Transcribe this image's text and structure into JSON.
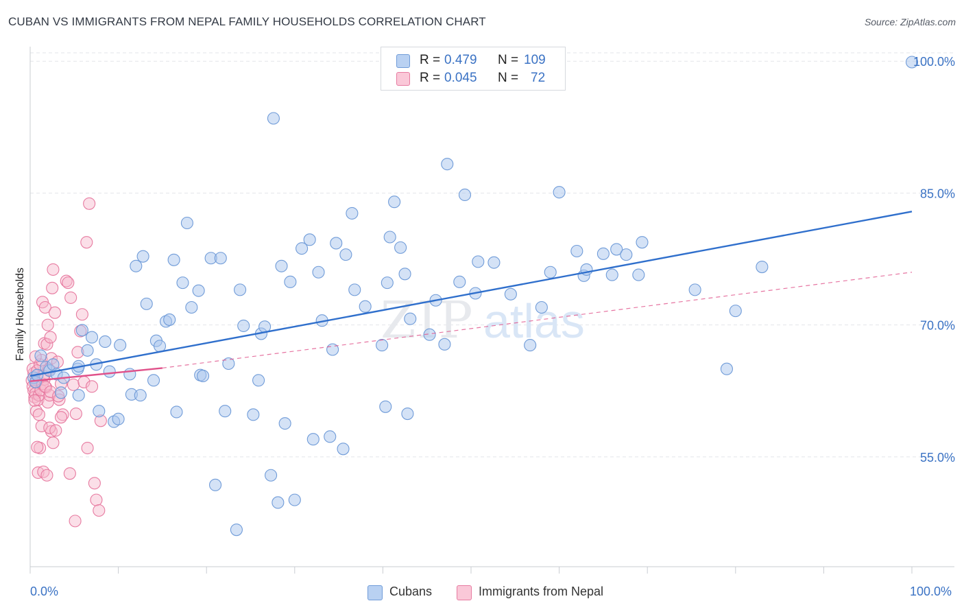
{
  "header": {
    "title": "CUBAN VS IMMIGRANTS FROM NEPAL FAMILY HOUSEHOLDS CORRELATION CHART",
    "source": "Source: ZipAtlas.com"
  },
  "legend_top": {
    "rows": [
      {
        "r_label": "R =",
        "r_value": "0.479",
        "n_label": "N =",
        "n_value": "109"
      },
      {
        "r_label": "R =",
        "r_value": "0.045",
        "n_label": "N =",
        "n_value": "72"
      }
    ]
  },
  "legend_bottom": {
    "items": [
      "Cubans",
      "Immigrants from Nepal"
    ]
  },
  "watermark": {
    "zip": "ZIP",
    "atlas": "atlas"
  },
  "colors": {
    "cubans_fill": "#a9c6ee",
    "cubans_stroke": "#6f9bd8",
    "cubans_line": "#2f6fcc",
    "nepal_fill": "#f7b8cc",
    "nepal_stroke": "#e77aa0",
    "nepal_line": "#e0518a",
    "axis_label": "#3a72c4",
    "grid": "#e3e5e9"
  },
  "chart_data": {
    "type": "scatter",
    "title": "CUBAN VS IMMIGRANTS FROM NEPAL FAMILY HOUSEHOLDS CORRELATION CHART",
    "xlabel": "",
    "ylabel": "Family Households",
    "xlim": [
      0,
      100
    ],
    "ylim": [
      42.5,
      101.5
    ],
    "x_tick_labels": [
      "0.0%",
      "100.0%"
    ],
    "y_ticks": [
      55.0,
      70.0,
      85.0,
      100.0
    ],
    "y_tick_labels": [
      "55.0%",
      "70.0%",
      "85.0%",
      "100.0%"
    ],
    "series": [
      {
        "name": "Cubans",
        "r": 0.479,
        "n": 109,
        "trend": {
          "x0": 0,
          "y0": 64.2,
          "x1": 100,
          "y1": 82.9
        },
        "points": [
          [
            0.4,
            64.0
          ],
          [
            0.6,
            63.5
          ],
          [
            0.8,
            64.3
          ],
          [
            1.2,
            66.5
          ],
          [
            1.8,
            65.2
          ],
          [
            2.2,
            64.8
          ],
          [
            2.6,
            65.5
          ],
          [
            3.0,
            64.4
          ],
          [
            3.5,
            62.3
          ],
          [
            3.8,
            64.0
          ],
          [
            5.4,
            65.0
          ],
          [
            5.5,
            65.3
          ],
          [
            5.5,
            62.0
          ],
          [
            5.9,
            69.4
          ],
          [
            6.5,
            67.1
          ],
          [
            7.0,
            68.6
          ],
          [
            7.5,
            65.5
          ],
          [
            7.8,
            60.2
          ],
          [
            8.5,
            68.1
          ],
          [
            9.0,
            64.7
          ],
          [
            9.5,
            59.0
          ],
          [
            10.0,
            59.3
          ],
          [
            10.2,
            67.7
          ],
          [
            11.3,
            64.4
          ],
          [
            11.5,
            62.1
          ],
          [
            12.0,
            76.7
          ],
          [
            12.5,
            62.0
          ],
          [
            12.8,
            77.8
          ],
          [
            13.2,
            72.4
          ],
          [
            14.0,
            63.7
          ],
          [
            14.3,
            68.2
          ],
          [
            14.7,
            67.6
          ],
          [
            15.4,
            70.4
          ],
          [
            15.8,
            70.6
          ],
          [
            16.3,
            77.4
          ],
          [
            16.6,
            60.1
          ],
          [
            17.3,
            74.8
          ],
          [
            17.8,
            81.6
          ],
          [
            18.3,
            72.0
          ],
          [
            19.1,
            73.9
          ],
          [
            19.3,
            64.3
          ],
          [
            19.6,
            64.2
          ],
          [
            20.5,
            77.6
          ],
          [
            21.0,
            51.8
          ],
          [
            21.6,
            77.6
          ],
          [
            22.1,
            60.2
          ],
          [
            22.5,
            65.6
          ],
          [
            23.4,
            46.7
          ],
          [
            23.8,
            74.0
          ],
          [
            24.2,
            69.9
          ],
          [
            25.3,
            59.8
          ],
          [
            25.9,
            63.7
          ],
          [
            26.2,
            69.0
          ],
          [
            26.6,
            69.8
          ],
          [
            27.3,
            52.9
          ],
          [
            27.6,
            93.5
          ],
          [
            28.1,
            49.8
          ],
          [
            28.5,
            76.7
          ],
          [
            28.9,
            58.8
          ],
          [
            29.5,
            74.9
          ],
          [
            30.0,
            50.1
          ],
          [
            30.8,
            78.7
          ],
          [
            31.7,
            79.7
          ],
          [
            32.1,
            57.0
          ],
          [
            32.7,
            76.0
          ],
          [
            33.1,
            70.5
          ],
          [
            34.0,
            57.3
          ],
          [
            34.3,
            67.2
          ],
          [
            34.7,
            79.3
          ],
          [
            35.5,
            55.9
          ],
          [
            35.8,
            78.0
          ],
          [
            36.5,
            82.7
          ],
          [
            36.8,
            74.0
          ],
          [
            38.0,
            72.1
          ],
          [
            39.9,
            67.7
          ],
          [
            40.3,
            60.7
          ],
          [
            40.5,
            74.8
          ],
          [
            41.3,
            84.0
          ],
          [
            40.8,
            80.0
          ],
          [
            42.0,
            78.8
          ],
          [
            42.5,
            75.8
          ],
          [
            42.8,
            59.9
          ],
          [
            43.1,
            70.7
          ],
          [
            45.3,
            68.9
          ],
          [
            46.0,
            72.8
          ],
          [
            47.0,
            67.8
          ],
          [
            47.3,
            88.3
          ],
          [
            48.7,
            74.9
          ],
          [
            49.3,
            84.8
          ],
          [
            50.5,
            73.6
          ],
          [
            50.8,
            77.2
          ],
          [
            52.6,
            77.1
          ],
          [
            54.5,
            73.5
          ],
          [
            56.7,
            67.7
          ],
          [
            58.0,
            72.0
          ],
          [
            59.0,
            76.0
          ],
          [
            60.0,
            85.1
          ],
          [
            62.0,
            78.4
          ],
          [
            62.8,
            75.6
          ],
          [
            63.1,
            76.3
          ],
          [
            65.0,
            78.1
          ],
          [
            66.0,
            75.7
          ],
          [
            66.5,
            78.6
          ],
          [
            67.6,
            78.0
          ],
          [
            69.0,
            75.7
          ],
          [
            69.4,
            79.4
          ],
          [
            75.4,
            74.0
          ],
          [
            79.0,
            65.0
          ],
          [
            80.0,
            71.6
          ],
          [
            83.0,
            76.6
          ],
          [
            100.0,
            99.9
          ]
        ]
      },
      {
        "name": "Immigrants from Nepal",
        "r": 0.045,
        "n": 72,
        "trend": {
          "x0": 0,
          "y0": 63.6,
          "x1": 15,
          "y1": 65.1
        },
        "trend_extended": {
          "x0": 15,
          "y0": 65.1,
          "x1": 100,
          "y1": 76.0
        },
        "points": [
          [
            0.2,
            63.7
          ],
          [
            0.3,
            63.0
          ],
          [
            0.4,
            62.5
          ],
          [
            0.5,
            61.8
          ],
          [
            0.6,
            62.2
          ],
          [
            0.7,
            63.5
          ],
          [
            0.4,
            64.5
          ],
          [
            0.3,
            65.0
          ],
          [
            0.9,
            61.5
          ],
          [
            1.0,
            62.0
          ],
          [
            1.2,
            62.6
          ],
          [
            1.4,
            63.3
          ],
          [
            1.6,
            63.8
          ],
          [
            1.8,
            62.9
          ],
          [
            2.0,
            61.2
          ],
          [
            2.2,
            62.0
          ],
          [
            0.8,
            64.8
          ],
          [
            1.1,
            65.5
          ],
          [
            1.3,
            66.0
          ],
          [
            1.5,
            64.2
          ],
          [
            1.7,
            63.0
          ],
          [
            0.6,
            66.4
          ],
          [
            2.4,
            66.2
          ],
          [
            0.5,
            61.4
          ],
          [
            0.7,
            60.2
          ],
          [
            1.0,
            59.8
          ],
          [
            1.3,
            58.5
          ],
          [
            1.6,
            67.9
          ],
          [
            1.9,
            67.8
          ],
          [
            2.1,
            64.9
          ],
          [
            2.3,
            62.4
          ],
          [
            0.9,
            53.2
          ],
          [
            1.1,
            56.0
          ],
          [
            1.4,
            72.6
          ],
          [
            1.7,
            72.0
          ],
          [
            2.0,
            70.0
          ],
          [
            2.3,
            68.6
          ],
          [
            2.5,
            74.2
          ],
          [
            2.6,
            76.3
          ],
          [
            2.8,
            71.4
          ],
          [
            3.1,
            65.8
          ],
          [
            3.3,
            61.5
          ],
          [
            3.5,
            63.3
          ],
          [
            3.7,
            59.8
          ],
          [
            4.1,
            75.0
          ],
          [
            4.3,
            74.8
          ],
          [
            4.6,
            73.1
          ],
          [
            4.9,
            63.2
          ],
          [
            5.2,
            59.9
          ],
          [
            5.4,
            66.9
          ],
          [
            5.7,
            69.3
          ],
          [
            5.9,
            71.2
          ],
          [
            6.1,
            63.5
          ],
          [
            6.5,
            56.0
          ],
          [
            6.4,
            79.4
          ],
          [
            6.7,
            83.8
          ],
          [
            7.0,
            63.0
          ],
          [
            7.3,
            52.0
          ],
          [
            7.5,
            50.1
          ],
          [
            7.8,
            48.9
          ],
          [
            8.0,
            59.1
          ],
          [
            2.4,
            57.9
          ],
          [
            2.2,
            58.3
          ],
          [
            2.6,
            56.6
          ],
          [
            2.9,
            58.0
          ],
          [
            3.2,
            61.9
          ],
          [
            3.5,
            59.5
          ],
          [
            4.5,
            53.1
          ],
          [
            5.1,
            47.7
          ],
          [
            1.5,
            53.3
          ],
          [
            1.9,
            52.9
          ],
          [
            0.8,
            56.1
          ]
        ]
      }
    ]
  }
}
